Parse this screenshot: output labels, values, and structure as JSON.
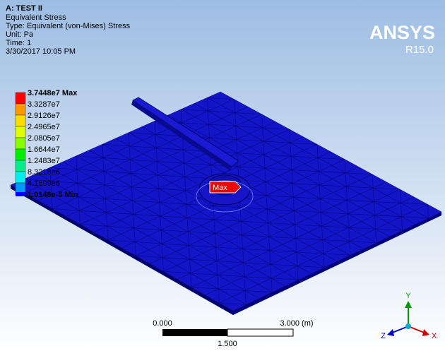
{
  "header": {
    "title": "A: TEST II",
    "lines": [
      "Equivalent Stress",
      "Type: Equivalent (von-Mises) Stress",
      "Unit: Pa",
      "Time: 1",
      "3/30/2017 10:05 PM"
    ]
  },
  "legend": {
    "labels": [
      "3.7448e7 Max",
      "3.3287e7",
      "2.9126e7",
      "2.4965e7",
      "2.0805e7",
      "1.6644e7",
      "1.2483e7",
      "8.3218e6",
      "4.1609e6",
      "1.0146e-5 Min"
    ]
  },
  "logo": {
    "name": "ANSYS",
    "version": "R15.0"
  },
  "probe": {
    "label": "Max"
  },
  "scale_bar": {
    "start": "0.000",
    "end": "3.000 (m)",
    "mid": "1.500"
  },
  "triad": {
    "y": "Y",
    "z": "Z",
    "x": "X"
  }
}
